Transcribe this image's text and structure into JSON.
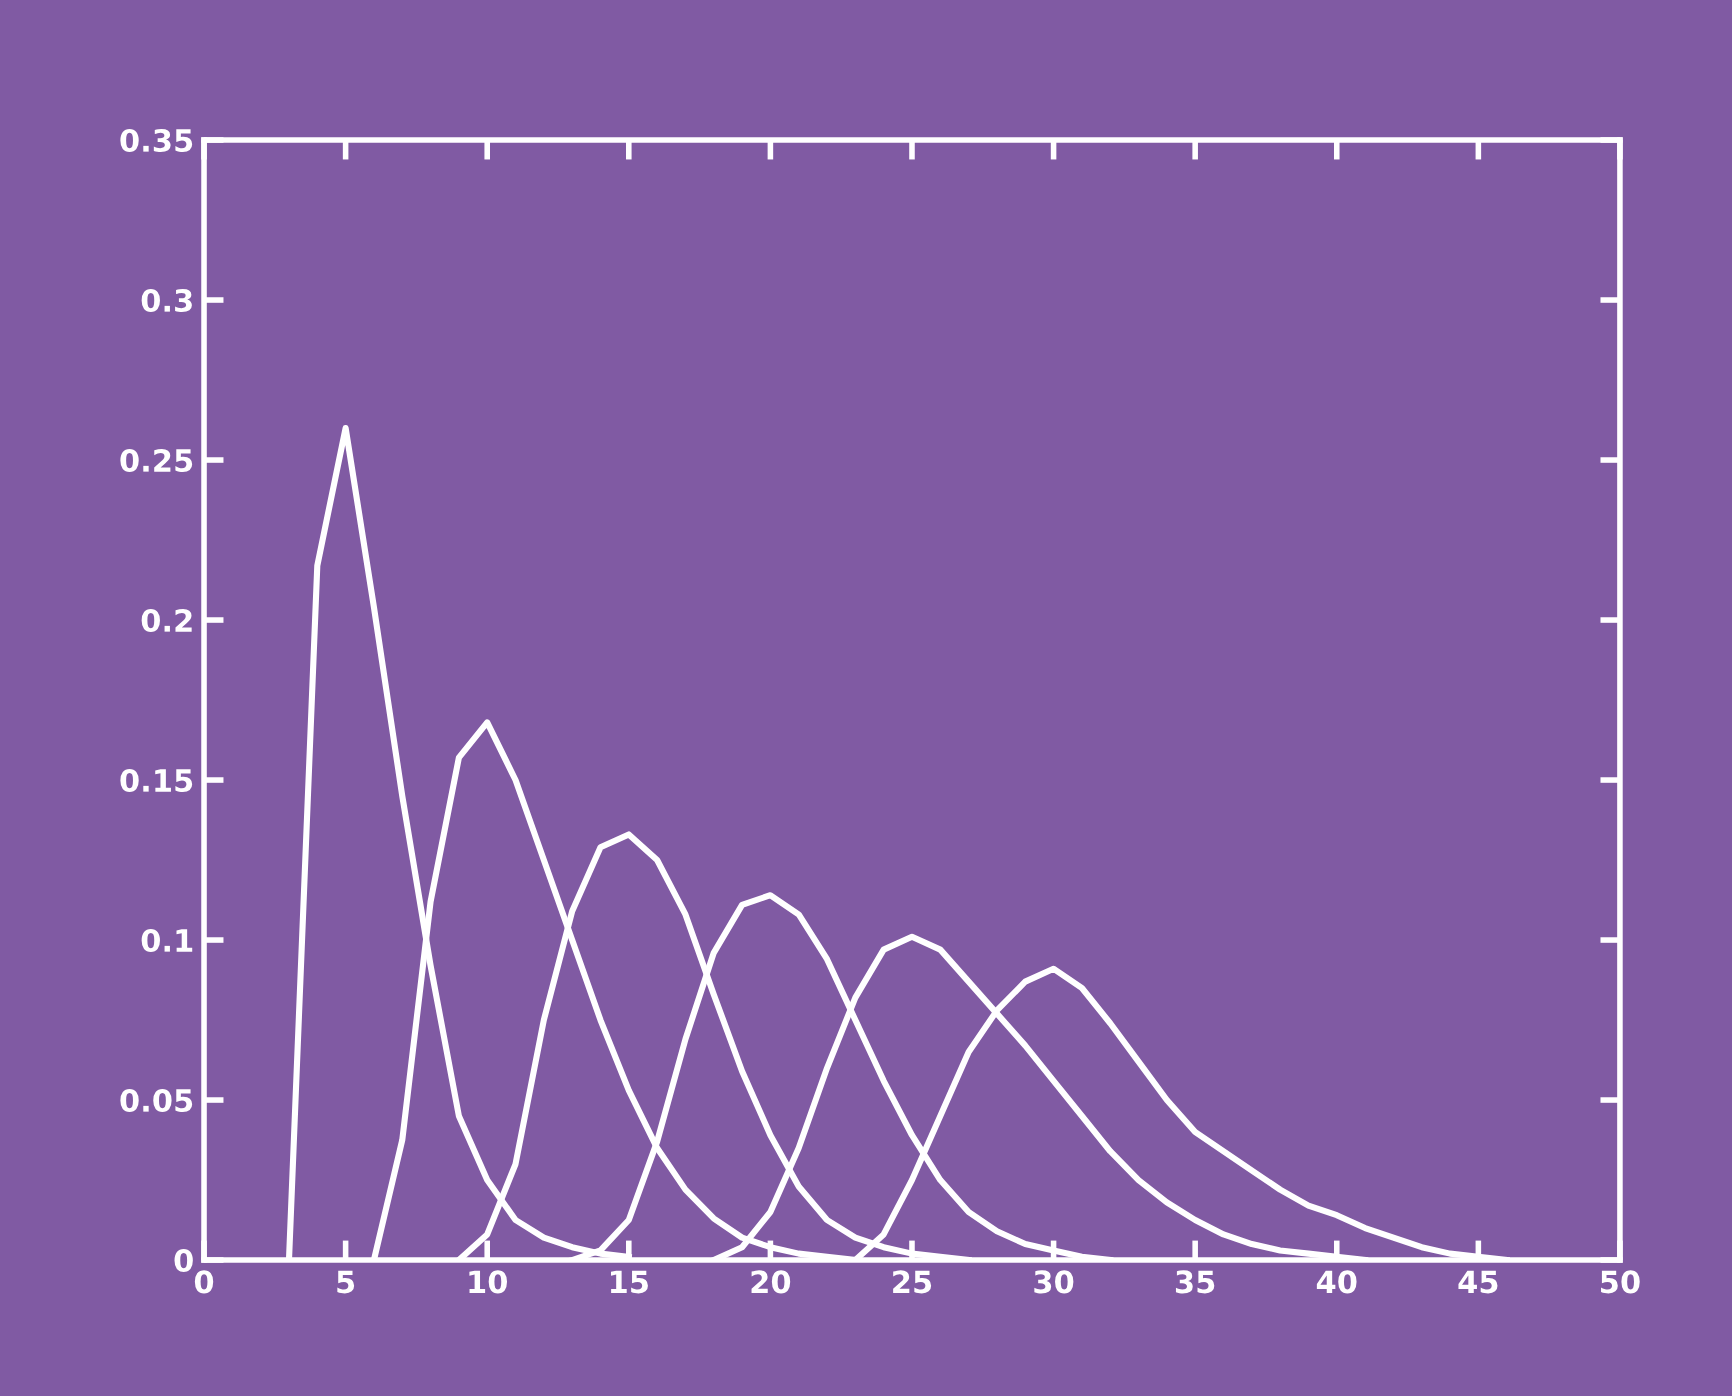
{
  "chart_data": {
    "type": "line",
    "xlim": [
      0,
      50
    ],
    "ylim": [
      0,
      0.35
    ],
    "xticks": [
      0,
      5,
      10,
      15,
      20,
      25,
      30,
      35,
      40,
      45,
      50
    ],
    "yticks": [
      0,
      0.05,
      0.1,
      0.15,
      0.2,
      0.25,
      0.3,
      0.35
    ],
    "grid": false,
    "marker": "none",
    "line_style": "solid",
    "series": [
      {
        "color": "#ffffff",
        "x": [
          3,
          4,
          5,
          6,
          7,
          8,
          9,
          10,
          11,
          12,
          13,
          14,
          15
        ],
        "values": [
          0,
          0.217,
          0.26,
          0.204,
          0.145,
          0.092,
          0.045,
          0.025,
          0.0125,
          0.007,
          0.004,
          0.002,
          0.001
        ]
      },
      {
        "color": "#ffffff",
        "x": [
          6,
          7,
          8,
          9,
          10,
          11,
          12,
          13,
          14,
          15,
          16,
          17,
          18,
          19,
          20,
          21,
          22,
          23
        ],
        "values": [
          0,
          0.0375,
          0.112,
          0.157,
          0.168,
          0.15,
          0.125,
          0.1,
          0.075,
          0.053,
          0.035,
          0.022,
          0.013,
          0.007,
          0.004,
          0.002,
          0.001,
          0
        ]
      },
      {
        "color": "#ffffff",
        "x": [
          9,
          10,
          11,
          12,
          13,
          14,
          15,
          16,
          17,
          18,
          19,
          20,
          21,
          22,
          23,
          24,
          25,
          26,
          27
        ],
        "values": [
          0,
          0.008,
          0.03,
          0.075,
          0.109,
          0.129,
          0.133,
          0.125,
          0.108,
          0.083,
          0.059,
          0.039,
          0.023,
          0.0125,
          0.007,
          0.004,
          0.002,
          0.001,
          0
        ]
      },
      {
        "color": "#ffffff",
        "x": [
          13,
          14,
          15,
          16,
          17,
          18,
          19,
          20,
          21,
          22,
          23,
          24,
          25,
          26,
          27,
          28,
          29,
          30,
          31,
          32
        ],
        "values": [
          0,
          0.003,
          0.0125,
          0.037,
          0.069,
          0.096,
          0.111,
          0.114,
          0.108,
          0.094,
          0.075,
          0.056,
          0.039,
          0.025,
          0.015,
          0.009,
          0.005,
          0.003,
          0.001,
          0
        ]
      },
      {
        "color": "#ffffff",
        "x": [
          18,
          19,
          20,
          21,
          22,
          23,
          24,
          25,
          26,
          27,
          28,
          29,
          30,
          31,
          32,
          33,
          34,
          35,
          36,
          37,
          38,
          39,
          40,
          41
        ],
        "values": [
          0,
          0.004,
          0.015,
          0.035,
          0.06,
          0.082,
          0.097,
          0.101,
          0.097,
          0.087,
          0.077,
          0.067,
          0.056,
          0.045,
          0.034,
          0.025,
          0.018,
          0.0125,
          0.008,
          0.005,
          0.003,
          0.002,
          0.001,
          0
        ]
      },
      {
        "color": "#ffffff",
        "x": [
          23,
          24,
          25,
          26,
          27,
          28,
          29,
          30,
          31,
          32,
          33,
          34,
          35,
          36,
          37,
          38,
          39,
          40,
          41,
          42,
          43,
          44,
          45,
          46
        ],
        "values": [
          0,
          0.008,
          0.025,
          0.045,
          0.065,
          0.078,
          0.087,
          0.091,
          0.085,
          0.074,
          0.062,
          0.05,
          0.04,
          0.034,
          0.028,
          0.022,
          0.017,
          0.014,
          0.01,
          0.007,
          0.004,
          0.002,
          0.001,
          0
        ]
      }
    ]
  }
}
